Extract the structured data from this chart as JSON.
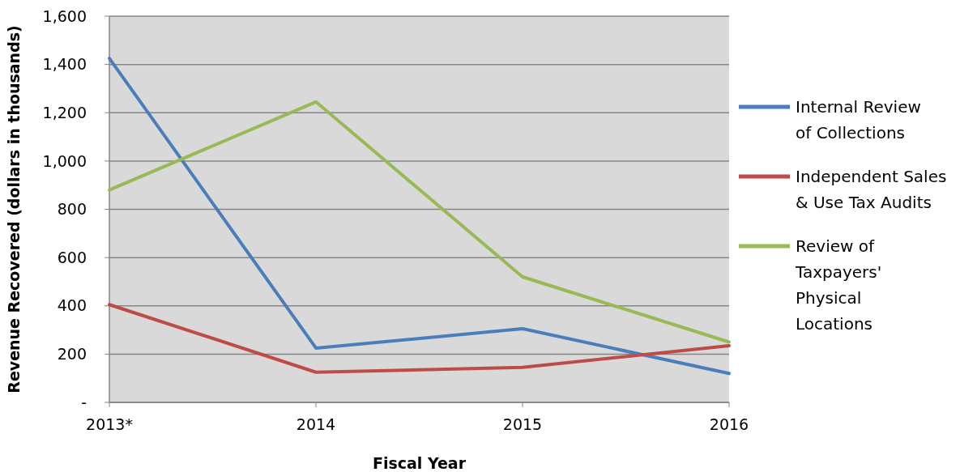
{
  "chart_data": {
    "type": "line",
    "xlabel": "Fiscal Year",
    "ylabel": "Revenue Recovered (dollars in thousands)",
    "categories": [
      "2013*",
      "2014",
      "2015",
      "2016"
    ],
    "series": [
      {
        "name": "Internal Review of Collections",
        "color": "#4a7ebb",
        "values": [
          1425,
          225,
          305,
          120
        ]
      },
      {
        "name": "Independent Sales & Use Tax Audits",
        "color": "#be4b48",
        "values": [
          405,
          125,
          145,
          235
        ]
      },
      {
        "name": "Review of Taxpayers' Physical Locations",
        "color": "#98b954",
        "values": [
          880,
          1245,
          520,
          250
        ]
      }
    ],
    "ylim": [
      0,
      1600
    ],
    "yticks": [
      {
        "value": 0,
        "label": "-"
      },
      {
        "value": 200,
        "label": "200"
      },
      {
        "value": 400,
        "label": "400"
      },
      {
        "value": 600,
        "label": "600"
      },
      {
        "value": 800,
        "label": "800"
      },
      {
        "value": 1000,
        "label": "1,000"
      },
      {
        "value": 1200,
        "label": "1,200"
      },
      {
        "value": 1400,
        "label": "1,400"
      },
      {
        "value": 1600,
        "label": "1,600"
      }
    ],
    "grid": "y",
    "legend": "right",
    "marker": "none",
    "line_style": "solid"
  }
}
